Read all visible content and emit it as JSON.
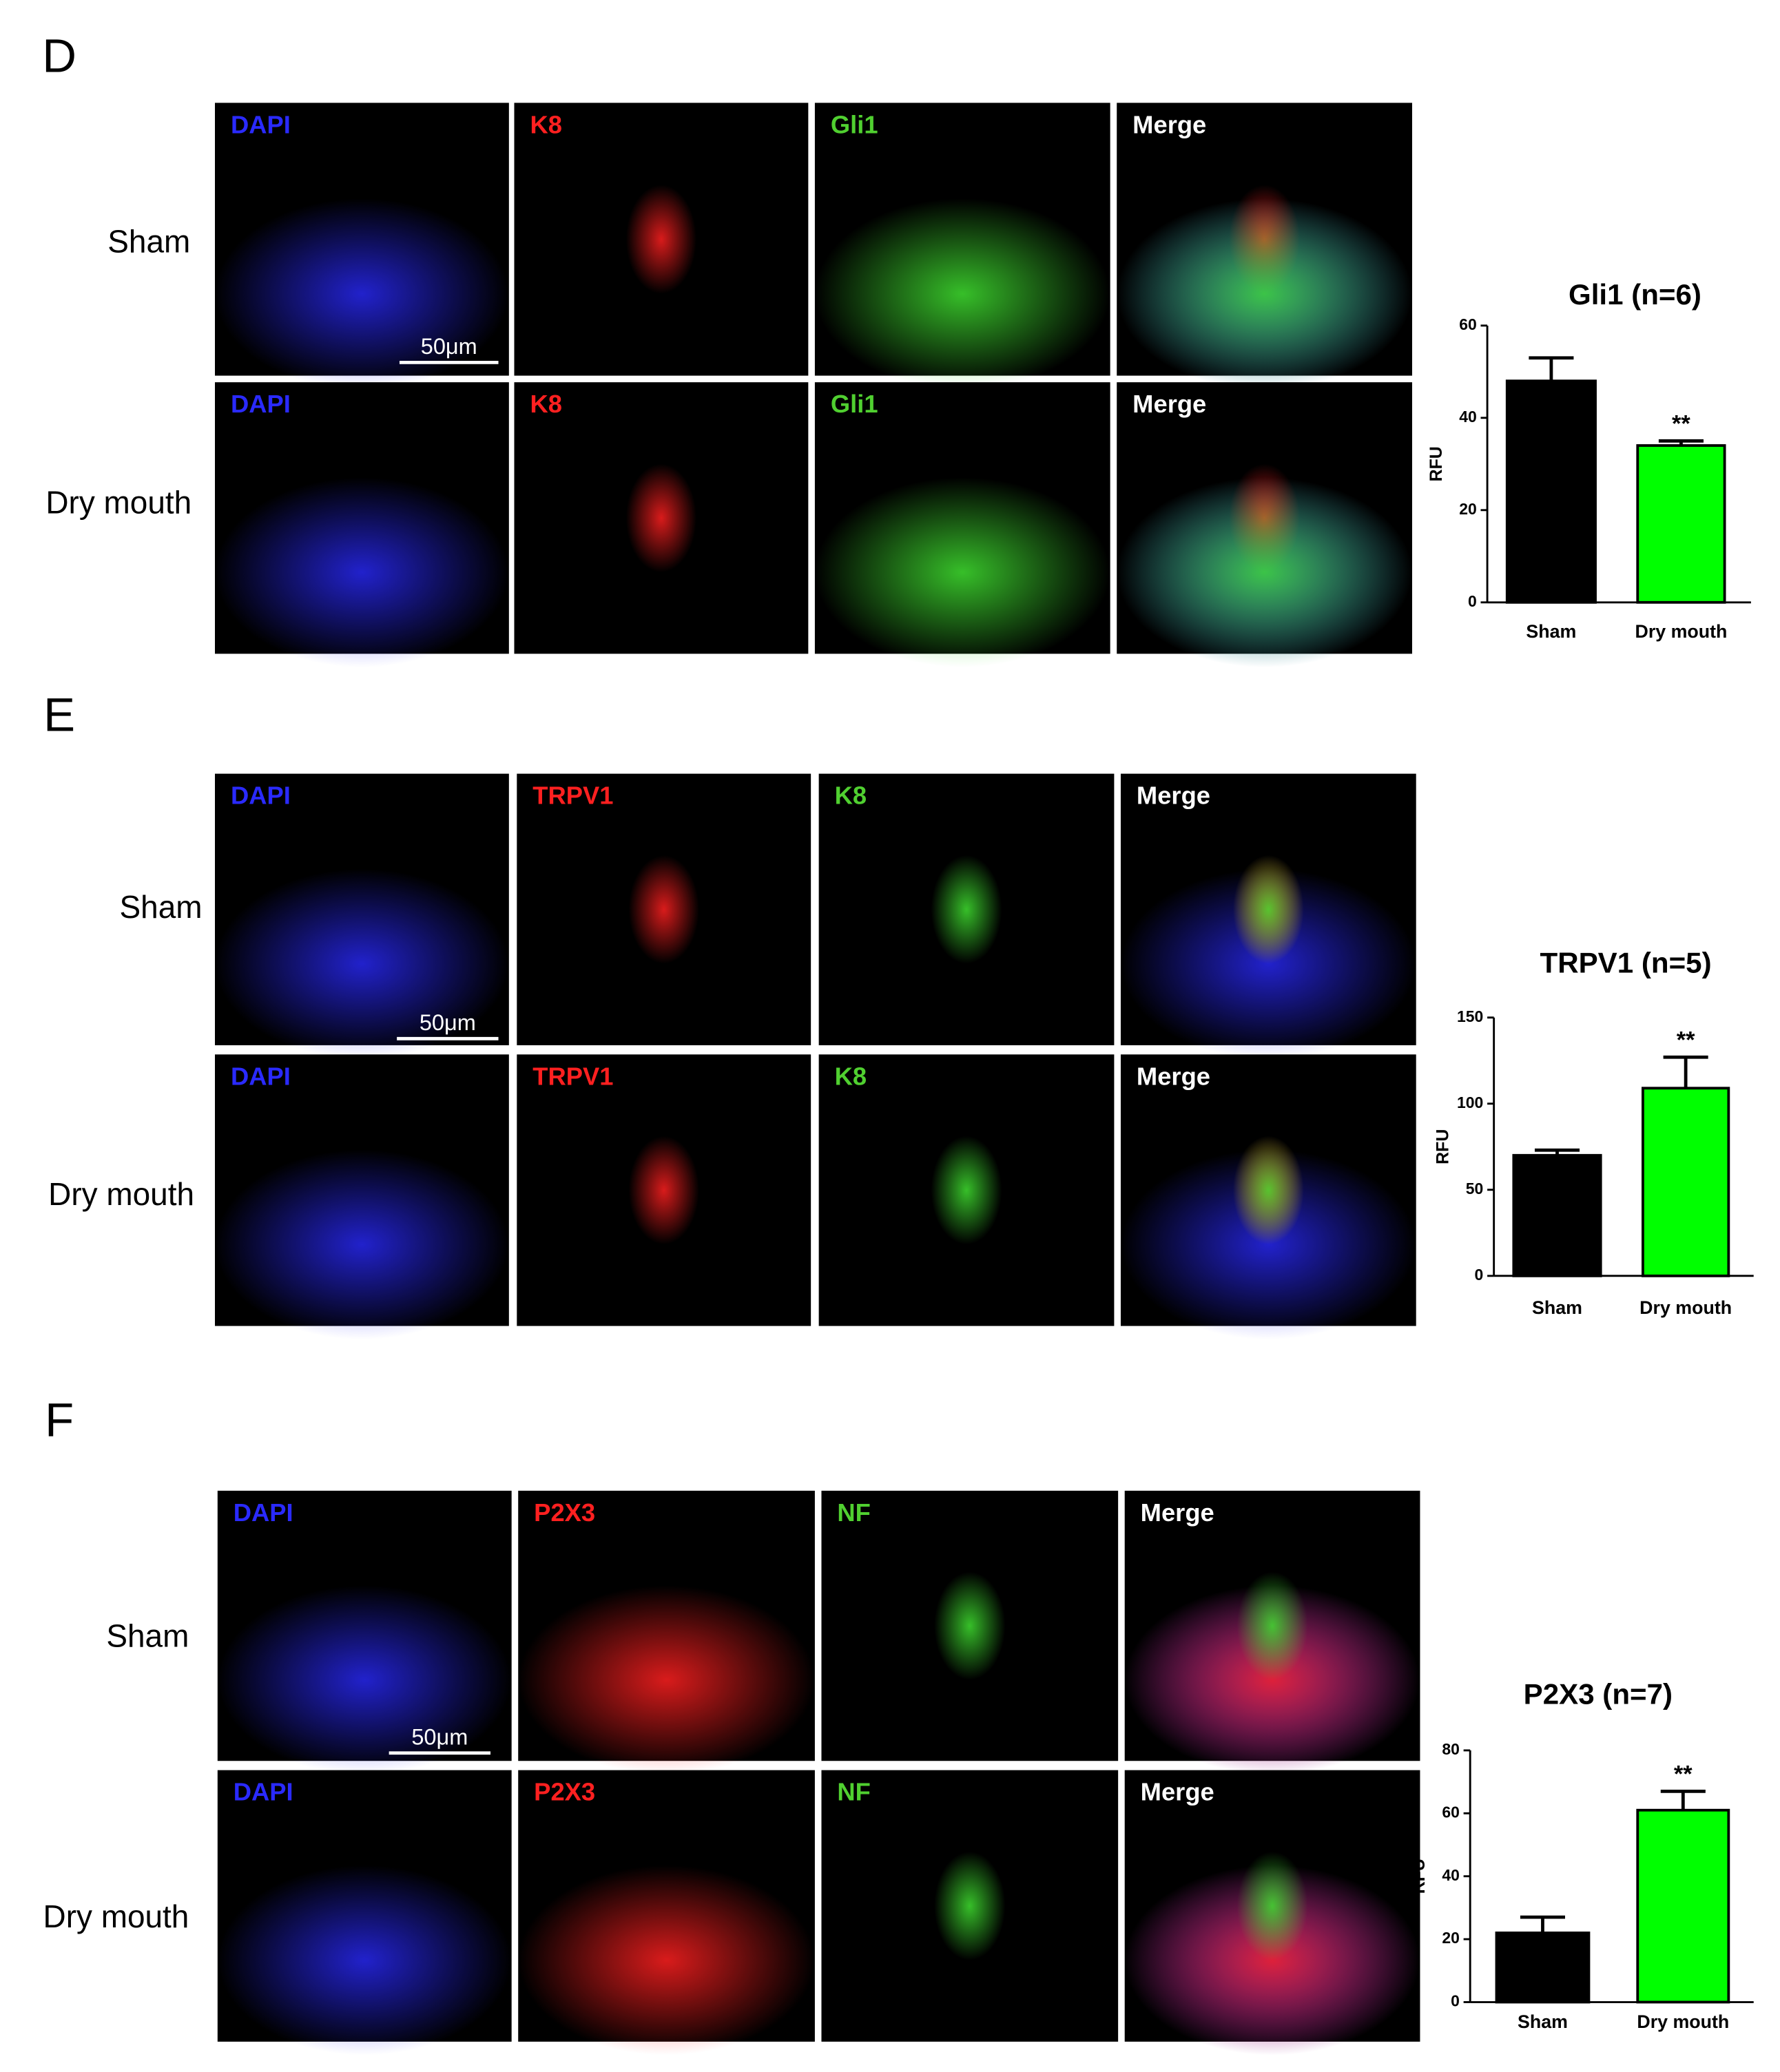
{
  "panels": [
    {
      "letter": "D",
      "rows": [
        "Sham",
        "Dry mouth"
      ],
      "scale_bar": "50μm",
      "channels": [
        {
          "label": "DAPI",
          "color": "#2a2aff"
        },
        {
          "label": "K8",
          "color": "#ff2020"
        },
        {
          "label": "Gli1",
          "color": "#50d030"
        },
        {
          "label": "Merge",
          "color": "#ffffff"
        }
      ]
    },
    {
      "letter": "E",
      "rows": [
        "Sham",
        "Dry mouth"
      ],
      "scale_bar": "50μm",
      "channels": [
        {
          "label": "DAPI",
          "color": "#2a2aff"
        },
        {
          "label": "TRPV1",
          "color": "#ff2020"
        },
        {
          "label": "K8",
          "color": "#50d030"
        },
        {
          "label": "Merge",
          "color": "#ffffff"
        }
      ]
    },
    {
      "letter": "F",
      "rows": [
        "Sham",
        "Dry mouth"
      ],
      "scale_bar": "50μm",
      "channels": [
        {
          "label": "DAPI",
          "color": "#2a2aff"
        },
        {
          "label": "P2X3",
          "color": "#ff2020"
        },
        {
          "label": "NF",
          "color": "#50d030"
        },
        {
          "label": "Merge",
          "color": "#ffffff"
        }
      ]
    }
  ],
  "chart_data": [
    {
      "type": "bar",
      "title": "Gli1 (n=6)",
      "ylabel": "RFU",
      "categories": [
        "Sham",
        "Dry mouth"
      ],
      "values": [
        48,
        34
      ],
      "errors": [
        5,
        1
      ],
      "colors": [
        "#000000",
        "#00ff00"
      ],
      "significance": [
        null,
        "**"
      ],
      "ylim": [
        0,
        60
      ],
      "yticks": [
        0,
        20,
        40,
        60
      ]
    },
    {
      "type": "bar",
      "title": "TRPV1 (n=5)",
      "ylabel": "RFU",
      "categories": [
        "Sham",
        "Dry mouth"
      ],
      "values": [
        70,
        109
      ],
      "errors": [
        3,
        18
      ],
      "colors": [
        "#000000",
        "#00ff00"
      ],
      "significance": [
        null,
        "**"
      ],
      "ylim": [
        0,
        150
      ],
      "yticks": [
        0,
        50,
        100,
        150
      ]
    },
    {
      "type": "bar",
      "title": "P2X3 (n=7)",
      "ylabel": "RFU",
      "categories": [
        "Sham",
        "Dry mouth"
      ],
      "values": [
        22,
        61
      ],
      "errors": [
        5,
        6
      ],
      "colors": [
        "#000000",
        "#00ff00"
      ],
      "significance": [
        null,
        "**"
      ],
      "ylim": [
        0,
        80
      ],
      "yticks": [
        0,
        20,
        40,
        60,
        80
      ]
    }
  ]
}
